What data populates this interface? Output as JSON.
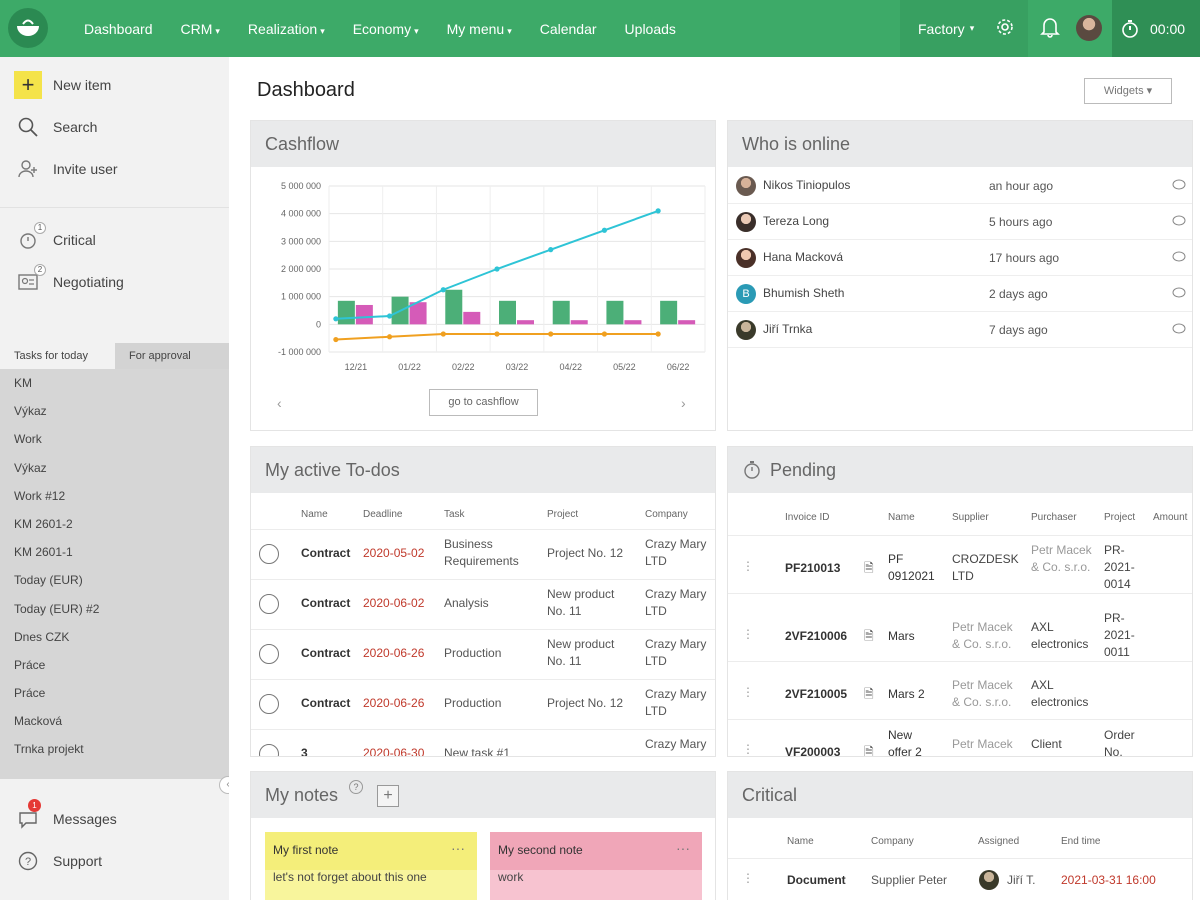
{
  "nav": {
    "items": [
      {
        "label": "Dashboard",
        "caret": false
      },
      {
        "label": "CRM",
        "caret": true
      },
      {
        "label": "Realization",
        "caret": true
      },
      {
        "label": "Economy",
        "caret": true
      },
      {
        "label": "My menu",
        "caret": true
      },
      {
        "label": "Calendar",
        "caret": false
      },
      {
        "label": "Uploads",
        "caret": false
      }
    ],
    "factory": "Factory",
    "timer": "00:00"
  },
  "sidebar": {
    "new_item": "New item",
    "search": "Search",
    "invite_user": "Invite user",
    "critical": "Critical",
    "critical_count": "1",
    "negotiating": "Negotiating",
    "negotiating_count": "2",
    "tab_today": "Tasks for today",
    "tab_approval": "For approval",
    "tasks": [
      "KM",
      "Výkaz",
      "Work",
      "Výkaz",
      "Work #12",
      "KM 2601-2",
      "KM 2601-1",
      "Today (EUR)",
      "Today (EUR) #2",
      "Dnes CZK",
      "Práce",
      "Práce",
      "Macková",
      "Trnka projekt"
    ],
    "messages": "Messages",
    "messages_count": "1",
    "support": "Support"
  },
  "page": {
    "title": "Dashboard",
    "widgets": "Widgets"
  },
  "cashflow": {
    "title": "Cashflow",
    "button": "go to cashflow"
  },
  "chart_data": {
    "type": "bar",
    "categories": [
      "12/21",
      "01/22",
      "02/22",
      "03/22",
      "04/22",
      "05/22",
      "06/22"
    ],
    "yticks": [
      "5 000 000",
      "4 000 000",
      "3 000 000",
      "2 000 000",
      "1 000 000",
      "0",
      "-1 000 000"
    ],
    "ylim": [
      -1000000,
      5000000
    ],
    "series": [
      {
        "kind": "bar",
        "color": "#4caf78",
        "values": [
          850000,
          1000000,
          1250000,
          850000,
          850000,
          850000,
          850000
        ]
      },
      {
        "kind": "bar",
        "color": "#d55bb8",
        "values": [
          700000,
          800000,
          450000,
          150000,
          150000,
          150000,
          150000
        ]
      },
      {
        "kind": "line",
        "color": "#2ec4d6",
        "values": [
          200000,
          300000,
          1250000,
          2000000,
          2700000,
          3400000,
          4100000
        ]
      },
      {
        "kind": "line",
        "color": "#f0a020",
        "values": [
          -550000,
          -450000,
          -350000,
          -350000,
          -350000,
          -350000,
          -350000
        ]
      }
    ]
  },
  "online": {
    "title": "Who is online",
    "users": [
      {
        "name": "Nikos Tiniopulos",
        "time": "an hour ago",
        "color": "#6a5a50"
      },
      {
        "name": "Tereza Long",
        "time": "5 hours ago",
        "color": "#3a2e2a"
      },
      {
        "name": "Hana Macková",
        "time": "17 hours ago",
        "color": "#4a3028"
      },
      {
        "name": "Bhumish Sheth",
        "time": "2 days ago",
        "color": "#2a9ab5"
      },
      {
        "name": "Jiří Trnka",
        "time": "7 days ago",
        "color": "#3a3a2a"
      }
    ]
  },
  "todos": {
    "title": "My active To-dos",
    "headers": [
      "Name",
      "Deadline",
      "Task",
      "Project",
      "Company"
    ],
    "rows": [
      {
        "name": "Contract",
        "deadline": "2020-05-02",
        "task": "Business Requirements",
        "project": "Project No. 12",
        "company": "Crazy Mary LTD"
      },
      {
        "name": "Contract",
        "deadline": "2020-06-02",
        "task": "Analysis",
        "project": "New product No. 11",
        "company": "Crazy Mary LTD"
      },
      {
        "name": "Contract",
        "deadline": "2020-06-26",
        "task": "Production",
        "project": "New product No. 11",
        "company": "Crazy Mary LTD"
      },
      {
        "name": "Contract",
        "deadline": "2020-06-26",
        "task": "Production",
        "project": "Project No. 12",
        "company": "Crazy Mary LTD"
      },
      {
        "name": "3",
        "deadline": "2020-06-30",
        "task": "New task #1",
        "project": "",
        "company": "Crazy Mary"
      }
    ]
  },
  "pending": {
    "title": "Pending",
    "headers": [
      "Invoice ID",
      "Name",
      "Supplier",
      "Purchaser",
      "Project",
      "Amount"
    ],
    "rows": [
      {
        "id": "PF210013",
        "name": "PF 0912021",
        "supplier": "CROZDESK LTD",
        "purchaser": "Petr Macek & Co. s.r.o.",
        "project": "PR-2021-0014"
      },
      {
        "id": "2VF210006",
        "name": "Mars",
        "supplier": "Petr Macek & Co. s.r.o.",
        "purchaser": "AXL electronics",
        "project": "PR-2021-0011"
      },
      {
        "id": "2VF210005",
        "name": "Mars 2",
        "supplier": "Petr Macek & Co. s.r.o.",
        "purchaser": "AXL electronics",
        "project": ""
      },
      {
        "id": "VF200003",
        "name": "New offer 2",
        "supplier": "Petr Macek",
        "purchaser": "Client",
        "project": "Order No."
      }
    ]
  },
  "notes": {
    "title": "My notes",
    "help": "?",
    "add": "+",
    "items": [
      {
        "title": "My first note",
        "body": "let's not forget about this one",
        "head": "#f4ee7a",
        "bg": "#f8f59c"
      },
      {
        "title": "My second note",
        "body": "work",
        "head": "#f0a6b8",
        "bg": "#f7c3d0"
      }
    ]
  },
  "critical": {
    "title": "Critical",
    "headers": [
      "Name",
      "Company",
      "Assigned",
      "End time"
    ],
    "rows": [
      {
        "name": "Document",
        "company": "Supplier Peter",
        "assigned": "Jiří T.",
        "end": "2021-03-31 16:00"
      }
    ]
  }
}
